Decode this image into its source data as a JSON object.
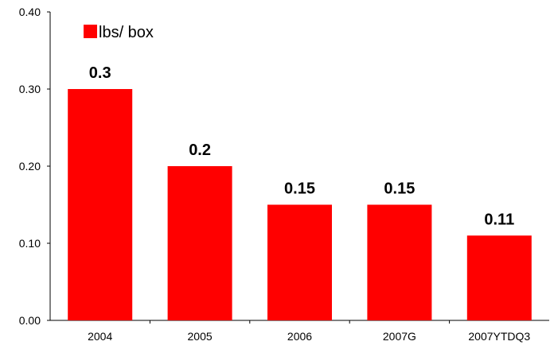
{
  "chart_data": {
    "type": "bar",
    "categories": [
      "2004",
      "2005",
      "2006",
      "2007G",
      "2007YTDQ3"
    ],
    "series": [
      {
        "name": "lbs/ box",
        "values": [
          0.3,
          0.2,
          0.15,
          0.15,
          0.11
        ],
        "color": "#FF0000"
      }
    ],
    "data_labels": [
      "0.3",
      "0.2",
      "0.15",
      "0.15",
      "0.11"
    ],
    "ylim": [
      0,
      0.4
    ],
    "yticks": [
      0,
      0.1,
      0.2,
      0.3,
      0.4
    ],
    "ytick_labels": [
      "0.00",
      "0.10",
      "0.20",
      "0.30",
      "0.40"
    ],
    "grid": false,
    "legend_position": "top-left",
    "title": "",
    "xlabel": "",
    "ylabel": ""
  }
}
